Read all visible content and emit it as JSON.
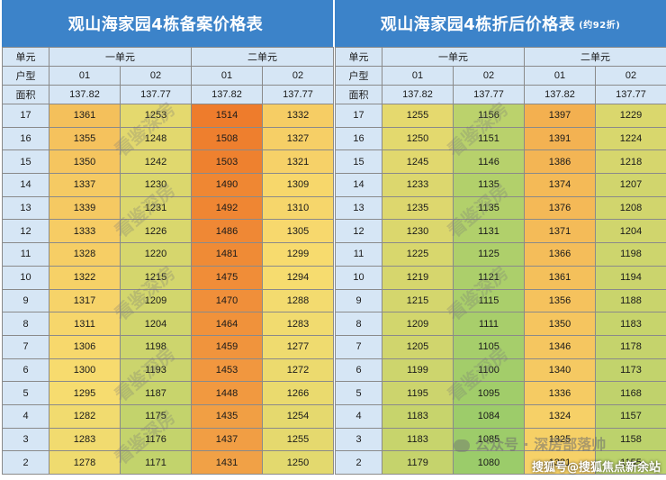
{
  "tables": [
    {
      "title": "观山海家园4栋备案价格表",
      "subtitle": "",
      "unit_header": [
        "单元",
        "一单元",
        "二单元"
      ],
      "type_header": [
        "户型",
        "01",
        "02",
        "01",
        "02"
      ],
      "area_header": [
        "面积",
        "137.82",
        "137.77",
        "137.82",
        "137.77"
      ],
      "rows": [
        [
          "17",
          "1361",
          "1253",
          "1514",
          "1332"
        ],
        [
          "16",
          "1355",
          "1248",
          "1508",
          "1327"
        ],
        [
          "15",
          "1350",
          "1242",
          "1503",
          "1321"
        ],
        [
          "14",
          "1337",
          "1230",
          "1490",
          "1309"
        ],
        [
          "13",
          "1339",
          "1231",
          "1492",
          "1310"
        ],
        [
          "12",
          "1333",
          "1226",
          "1486",
          "1305"
        ],
        [
          "11",
          "1328",
          "1220",
          "1481",
          "1299"
        ],
        [
          "10",
          "1322",
          "1215",
          "1475",
          "1294"
        ],
        [
          "9",
          "1317",
          "1209",
          "1470",
          "1288"
        ],
        [
          "8",
          "1311",
          "1204",
          "1464",
          "1283"
        ],
        [
          "7",
          "1306",
          "1198",
          "1459",
          "1277"
        ],
        [
          "6",
          "1300",
          "1193",
          "1453",
          "1272"
        ],
        [
          "5",
          "1295",
          "1187",
          "1448",
          "1266"
        ],
        [
          "4",
          "1282",
          "1175",
          "1435",
          "1254"
        ],
        [
          "3",
          "1283",
          "1176",
          "1437",
          "1255"
        ],
        [
          "2",
          "1278",
          "1171",
          "1431",
          "1250"
        ]
      ]
    },
    {
      "title": "观山海家园4栋折后价格表",
      "subtitle": "(约92折)",
      "unit_header": [
        "单元",
        "一单元",
        "二单元"
      ],
      "type_header": [
        "户型",
        "01",
        "02",
        "01",
        "02"
      ],
      "area_header": [
        "面积",
        "137.82",
        "137.77",
        "137.82",
        "137.77"
      ],
      "rows": [
        [
          "17",
          "1255",
          "1156",
          "1397",
          "1229"
        ],
        [
          "16",
          "1250",
          "1151",
          "1391",
          "1224"
        ],
        [
          "15",
          "1245",
          "1146",
          "1386",
          "1218"
        ],
        [
          "14",
          "1233",
          "1135",
          "1374",
          "1207"
        ],
        [
          "13",
          "1235",
          "1135",
          "1376",
          "1208"
        ],
        [
          "12",
          "1230",
          "1131",
          "1371",
          "1204"
        ],
        [
          "11",
          "1225",
          "1125",
          "1366",
          "1198"
        ],
        [
          "10",
          "1219",
          "1121",
          "1361",
          "1194"
        ],
        [
          "9",
          "1215",
          "1115",
          "1356",
          "1188"
        ],
        [
          "8",
          "1209",
          "1111",
          "1350",
          "1183"
        ],
        [
          "7",
          "1205",
          "1105",
          "1346",
          "1178"
        ],
        [
          "6",
          "1199",
          "1100",
          "1340",
          "1173"
        ],
        [
          "5",
          "1195",
          "1095",
          "1336",
          "1168"
        ],
        [
          "4",
          "1183",
          "1084",
          "1324",
          "1157"
        ],
        [
          "3",
          "1183",
          "1085",
          "1325",
          "1158"
        ],
        [
          "2",
          "1179",
          "1080",
          "1321",
          "1155"
        ]
      ]
    }
  ],
  "watermarks": {
    "diagonal_text": "看鉴深房",
    "brand": "公众号 · 深房部落帅",
    "footer": "搜狐号@搜狐焦点新余站"
  },
  "colors": {
    "title_bg": "#3c83c9",
    "header_bg": "#d6e6f5",
    "heat_low": "#9bcc6a",
    "heat_mid": "#f7dc6f",
    "heat_high": "#ee7c2c"
  }
}
